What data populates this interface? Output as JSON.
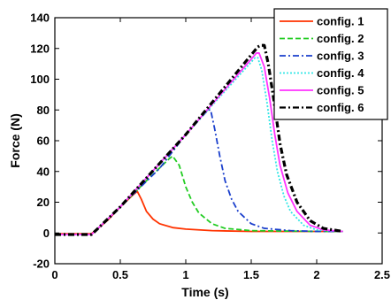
{
  "chart_data": {
    "type": "line",
    "title": "",
    "xlabel": "Time (s)",
    "ylabel": "Force (N)",
    "xlim": [
      0,
      2.5
    ],
    "ylim": [
      -20,
      140
    ],
    "xticks": [
      "0",
      "0.5",
      "1",
      "1.5",
      "2",
      "2.5"
    ],
    "yticks": [
      "-20",
      "0",
      "20",
      "40",
      "60",
      "80",
      "100",
      "120",
      "140"
    ],
    "grid": false,
    "legend_position": "top-right",
    "series": [
      {
        "name": "config. 1",
        "color": "#ff3300",
        "dash": "solid",
        "x": [
          0,
          0.28,
          0.33,
          0.4,
          0.5,
          0.6,
          0.63,
          0.66,
          0.7,
          0.75,
          0.8,
          0.9,
          1.0,
          1.2,
          1.5,
          2.0,
          2.2
        ],
        "y": [
          -0.5,
          -0.5,
          3,
          8,
          17,
          25,
          27,
          22,
          14,
          9,
          6,
          3.5,
          2.5,
          1.5,
          1,
          1,
          1
        ]
      },
      {
        "name": "config. 2",
        "color": "#22cc22",
        "dash": "dashed",
        "x": [
          0,
          0.28,
          0.33,
          0.5,
          0.7,
          0.87,
          0.9,
          0.95,
          1.0,
          1.05,
          1.1,
          1.2,
          1.3,
          1.5,
          2.0,
          2.2
        ],
        "y": [
          -1,
          -1,
          3,
          17,
          34,
          48,
          50,
          44,
          30,
          20,
          13,
          6,
          3,
          1.5,
          1,
          1
        ]
      },
      {
        "name": "config. 3",
        "color": "#1a3fcc",
        "dash": "dashdot",
        "x": [
          0,
          0.28,
          0.33,
          0.5,
          0.8,
          1.0,
          1.17,
          1.19,
          1.22,
          1.26,
          1.3,
          1.35,
          1.4,
          1.5,
          1.6,
          1.8,
          2.0,
          2.2
        ],
        "y": [
          -1,
          -1,
          3,
          17,
          42,
          64,
          80,
          80,
          68,
          50,
          34,
          22,
          14,
          6,
          3,
          1.5,
          1,
          1
        ]
      },
      {
        "name": "config. 4",
        "color": "#33e6e6",
        "dash": "dotted",
        "x": [
          0,
          0.28,
          0.33,
          0.5,
          1.0,
          1.53,
          1.55,
          1.58,
          1.62,
          1.66,
          1.7,
          1.75,
          1.8,
          1.9,
          2.0,
          2.2
        ],
        "y": [
          -1,
          -1,
          3,
          17,
          64,
          114,
          114,
          106,
          85,
          60,
          40,
          24,
          14,
          5,
          2,
          1
        ]
      },
      {
        "name": "config. 5",
        "color": "#ff33ff",
        "dash": "solid",
        "x": [
          0,
          0.28,
          0.33,
          0.5,
          1.0,
          1.54,
          1.56,
          1.6,
          1.64,
          1.68,
          1.72,
          1.78,
          1.85,
          1.95,
          2.05,
          2.2
        ],
        "y": [
          -1,
          -1,
          3,
          17,
          64,
          117,
          117,
          108,
          88,
          64,
          44,
          26,
          14,
          5,
          2,
          1
        ]
      },
      {
        "name": "config. 6",
        "color": "#000000",
        "dash": "dashdot",
        "x": [
          0,
          0.28,
          0.33,
          0.5,
          1.0,
          1.55,
          1.57,
          1.6,
          1.63,
          1.67,
          1.72,
          1.77,
          1.85,
          1.95,
          2.05,
          2.2
        ],
        "y": [
          -1,
          -1,
          3,
          17,
          64,
          121,
          122,
          122,
          110,
          88,
          58,
          38,
          20,
          8,
          3,
          1
        ]
      }
    ]
  }
}
